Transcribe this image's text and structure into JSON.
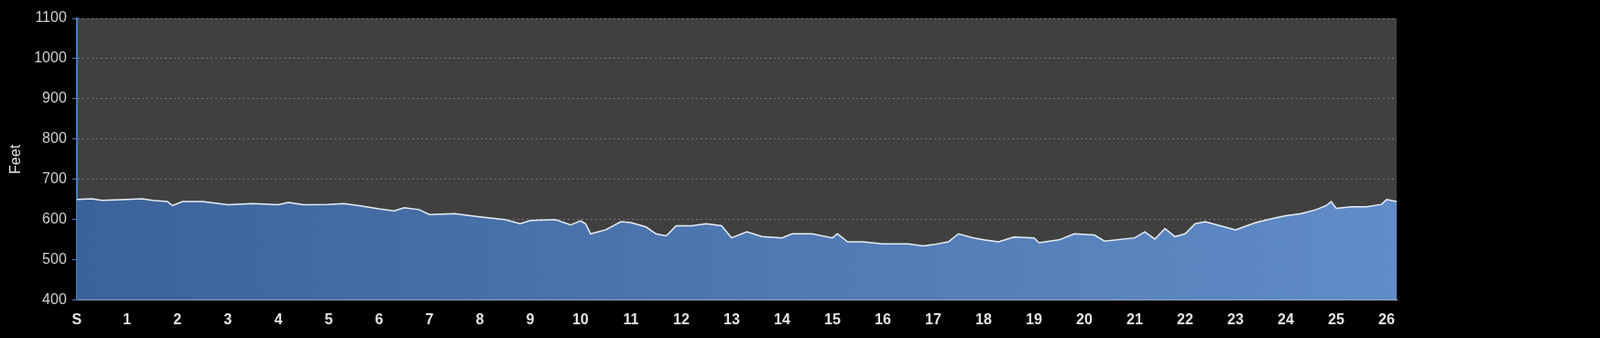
{
  "chart_data": {
    "type": "area",
    "y_label": "Feet",
    "x": [
      0,
      0.3,
      0.5,
      1,
      1.3,
      1.5,
      1.8,
      1.9,
      2.1,
      2.5,
      3,
      3.5,
      4,
      4.2,
      4.5,
      5,
      5.3,
      5.6,
      6,
      6.3,
      6.5,
      6.8,
      7,
      7.5,
      8,
      8.5,
      8.8,
      9,
      9.5,
      9.8,
      10,
      10.1,
      10.2,
      10.5,
      10.8,
      11,
      11.3,
      11.5,
      11.7,
      11.9,
      12.2,
      12.5,
      12.8,
      13,
      13.3,
      13.6,
      14,
      14.2,
      14.6,
      15,
      15.1,
      15.3,
      15.6,
      16,
      16.5,
      16.8,
      17,
      17.3,
      17.5,
      17.8,
      18,
      18.3,
      18.6,
      19,
      19.1,
      19.5,
      19.8,
      20.2,
      20.4,
      21,
      21.2,
      21.4,
      21.6,
      21.8,
      22,
      22.2,
      22.4,
      22.7,
      23,
      23.4,
      23.8,
      24,
      24.3,
      24.6,
      24.8,
      24.9,
      25,
      25.3,
      25.6,
      25.9,
      26,
      26.2
    ],
    "values": [
      650,
      652,
      648,
      650,
      652,
      648,
      645,
      635,
      645,
      645,
      637,
      640,
      637,
      643,
      637,
      638,
      640,
      635,
      627,
      622,
      630,
      625,
      613,
      615,
      607,
      600,
      590,
      598,
      600,
      587,
      597,
      590,
      565,
      575,
      595,
      593,
      582,
      565,
      560,
      585,
      585,
      590,
      585,
      555,
      570,
      558,
      555,
      565,
      565,
      555,
      565,
      545,
      545,
      540,
      540,
      535,
      538,
      545,
      565,
      555,
      550,
      545,
      557,
      555,
      543,
      550,
      565,
      562,
      547,
      555,
      570,
      552,
      578,
      558,
      565,
      590,
      595,
      585,
      575,
      593,
      605,
      610,
      615,
      625,
      635,
      645,
      628,
      632,
      632,
      638,
      650,
      645
    ],
    "color": "#4a7cbf",
    "xlim": [
      0,
      26.2
    ],
    "xticks": [
      {
        "value": 0,
        "label": "S"
      },
      1,
      2,
      3,
      4,
      5,
      6,
      7,
      8,
      9,
      10,
      11,
      12,
      13,
      14,
      15,
      16,
      17,
      18,
      19,
      20,
      21,
      22,
      23,
      24,
      25,
      26
    ],
    "ylim": [
      400,
      1100
    ],
    "yticks": [
      400,
      500,
      600,
      700,
      800,
      900,
      1000,
      1100
    ],
    "grid": true
  }
}
